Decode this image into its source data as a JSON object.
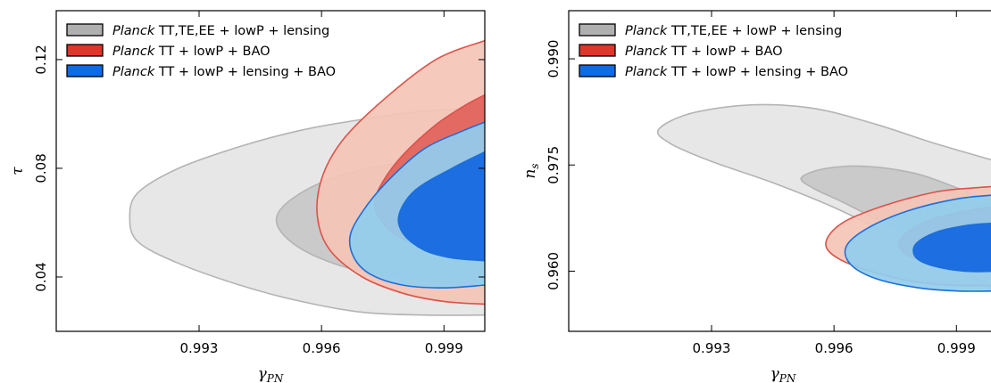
{
  "colors": {
    "gray_outer_fill": "#e3e3e3",
    "gray_inner_fill": "#c4c4c4",
    "gray_line": "#b4b4b4",
    "red_outer_fill": "#f5c4b7",
    "red_inner_fill": "#e1625a",
    "red_line": "#dc5348",
    "blue_outer_fill": "#90cdee",
    "blue_inner_fill": "#1266e0",
    "blue_line": "#1c6fd9",
    "legend_gray": "#b0b0b0",
    "legend_red": "#e0352b",
    "legend_blue": "#0e6be8"
  },
  "legend_items": [
    {
      "italic": "Planck",
      "rest": " TT,TE,EE + lowP + lensing",
      "color_key": "legend_gray"
    },
    {
      "italic": "Planck",
      "rest": " TT + lowP + BAO",
      "color_key": "legend_red"
    },
    {
      "italic": "Planck",
      "rest": " TT + lowP + lensing + BAO",
      "color_key": "legend_blue"
    }
  ],
  "chart_data": [
    {
      "type": "contour",
      "xlabel": "γ",
      "xlabel_sub": "PN",
      "ylabel": "τ",
      "ylabel_sub": "",
      "xlim": [
        0.9895,
        1.0
      ],
      "ylim": [
        0.02,
        0.138
      ],
      "xticks": [
        0.993,
        0.996,
        0.999
      ],
      "xtick_labels": [
        "0.993",
        "0.996",
        "0.999"
      ],
      "yticks": [
        0.04,
        0.08,
        0.12
      ],
      "ytick_labels": [
        "0.04",
        "0.08",
        "0.12"
      ],
      "legend_position": "top-left",
      "contours": [
        {
          "series": 0,
          "level": "95%",
          "points": [
            [
              1.0,
              0.026
            ],
            [
              0.9985,
              0.026
            ],
            [
              0.997,
              0.027
            ],
            [
              0.9955,
              0.031
            ],
            [
              0.994,
              0.037
            ],
            [
              0.9925,
              0.045
            ],
            [
              0.9915,
              0.053
            ],
            [
              0.9913,
              0.062
            ],
            [
              0.9915,
              0.071
            ],
            [
              0.9925,
              0.08
            ],
            [
              0.994,
              0.088
            ],
            [
              0.9955,
              0.094
            ],
            [
              0.997,
              0.098
            ],
            [
              0.9985,
              0.101
            ],
            [
              1.0,
              0.102
            ]
          ]
        },
        {
          "series": 0,
          "level": "68%",
          "points": [
            [
              1.0,
              0.037
            ],
            [
              0.9985,
              0.039
            ],
            [
              0.997,
              0.042
            ],
            [
              0.9958,
              0.048
            ],
            [
              0.9951,
              0.055
            ],
            [
              0.9949,
              0.062
            ],
            [
              0.9953,
              0.069
            ],
            [
              0.9962,
              0.076
            ],
            [
              0.9975,
              0.081
            ],
            [
              0.999,
              0.084
            ],
            [
              1.0,
              0.085
            ]
          ]
        },
        {
          "series": 1,
          "level": "95%",
          "points": [
            [
              1.0,
              0.03
            ],
            [
              0.999,
              0.031
            ],
            [
              0.998,
              0.034
            ],
            [
              0.997,
              0.04
            ],
            [
              0.9962,
              0.05
            ],
            [
              0.9959,
              0.062
            ],
            [
              0.996,
              0.076
            ],
            [
              0.9965,
              0.09
            ],
            [
              0.9975,
              0.105
            ],
            [
              0.9988,
              0.12
            ],
            [
              1.0,
              0.127
            ]
          ]
        },
        {
          "series": 1,
          "level": "68%",
          "points": [
            [
              1.0,
              0.049
            ],
            [
              0.999,
              0.05
            ],
            [
              0.998,
              0.054
            ],
            [
              0.9975,
              0.06
            ],
            [
              0.9973,
              0.067
            ],
            [
              0.9975,
              0.075
            ],
            [
              0.998,
              0.085
            ],
            [
              0.9988,
              0.096
            ],
            [
              0.9995,
              0.103
            ],
            [
              1.0,
              0.107
            ]
          ]
        },
        {
          "series": 2,
          "level": "95%",
          "points": [
            [
              1.0,
              0.037
            ],
            [
              0.999,
              0.036
            ],
            [
              0.998,
              0.037
            ],
            [
              0.9972,
              0.041
            ],
            [
              0.9968,
              0.047
            ],
            [
              0.9967,
              0.055
            ],
            [
              0.997,
              0.064
            ],
            [
              0.9976,
              0.075
            ],
            [
              0.9985,
              0.087
            ],
            [
              0.9995,
              0.094
            ],
            [
              1.0,
              0.097
            ]
          ]
        },
        {
          "series": 2,
          "level": "68%",
          "points": [
            [
              1.0,
              0.046
            ],
            [
              0.9992,
              0.047
            ],
            [
              0.9985,
              0.05
            ],
            [
              0.998,
              0.056
            ],
            [
              0.9979,
              0.063
            ],
            [
              0.9983,
              0.072
            ],
            [
              0.9992,
              0.08
            ],
            [
              1.0,
              0.086
            ]
          ]
        }
      ]
    },
    {
      "type": "contour",
      "xlabel": "γ",
      "xlabel_sub": "PN",
      "ylabel": "n",
      "ylabel_sub": "s",
      "xlim": [
        0.9895,
        1.0
      ],
      "ylim": [
        0.9515,
        0.9968
      ],
      "xticks": [
        0.993,
        0.996,
        0.999
      ],
      "xtick_labels": [
        "0.993",
        "0.996",
        "0.999"
      ],
      "yticks": [
        0.96,
        0.975,
        0.99
      ],
      "ytick_labels": [
        "0.960",
        "0.975",
        "0.990"
      ],
      "legend_position": "top-left",
      "contours": [
        {
          "series": 0,
          "level": "95%",
          "points": [
            [
              1.0,
              0.957
            ],
            [
              0.999,
              0.9605
            ],
            [
              0.9975,
              0.9648
            ],
            [
              0.996,
              0.969
            ],
            [
              0.9945,
              0.9725
            ],
            [
              0.993,
              0.9755
            ],
            [
              0.992,
              0.978
            ],
            [
              0.9917,
              0.98
            ],
            [
              0.9925,
              0.9823
            ],
            [
              0.994,
              0.9835
            ],
            [
              0.9955,
              0.983
            ],
            [
              0.997,
              0.9808
            ],
            [
              0.9985,
              0.978
            ],
            [
              1.0,
              0.9755
            ]
          ]
        },
        {
          "series": 0,
          "level": "68%",
          "points": [
            [
              1.0,
              0.9608
            ],
            [
              0.999,
              0.9625
            ],
            [
              0.998,
              0.965
            ],
            [
              0.997,
              0.9675
            ],
            [
              0.9962,
              0.9698
            ],
            [
              0.9955,
              0.9717
            ],
            [
              0.9952,
              0.9732
            ],
            [
              0.9958,
              0.9745
            ],
            [
              0.9968,
              0.9748
            ],
            [
              0.998,
              0.9738
            ],
            [
              0.999,
              0.9718
            ],
            [
              1.0,
              0.9695
            ]
          ]
        },
        {
          "series": 1,
          "level": "95%",
          "points": [
            [
              1.0,
              0.958
            ],
            [
              0.999,
              0.958
            ],
            [
              0.998,
              0.9585
            ],
            [
              0.997,
              0.9598
            ],
            [
              0.9961,
              0.9618
            ],
            [
              0.9958,
              0.964
            ],
            [
              0.9962,
              0.9668
            ],
            [
              0.9972,
              0.9692
            ],
            [
              0.9985,
              0.9712
            ],
            [
              0.9995,
              0.9718
            ],
            [
              1.0,
              0.972
            ]
          ]
        },
        {
          "series": 1,
          "level": "68%",
          "points": [
            [
              1.0,
              0.9605
            ],
            [
              0.999,
              0.9608
            ],
            [
              0.998,
              0.9618
            ],
            [
              0.9976,
              0.9635
            ],
            [
              0.9978,
              0.9655
            ],
            [
              0.9985,
              0.9675
            ],
            [
              0.9995,
              0.9688
            ],
            [
              1.0,
              0.969
            ]
          ]
        },
        {
          "series": 2,
          "level": "95%",
          "points": [
            [
              1.0,
              0.9572
            ],
            [
              0.999,
              0.9572
            ],
            [
              0.998,
              0.9577
            ],
            [
              0.997,
              0.959
            ],
            [
              0.9964,
              0.961
            ],
            [
              0.9963,
              0.9635
            ],
            [
              0.9968,
              0.966
            ],
            [
              0.9978,
              0.9685
            ],
            [
              0.999,
              0.9702
            ],
            [
              1.0,
              0.9708
            ]
          ]
        },
        {
          "series": 2,
          "level": "68%",
          "points": [
            [
              1.0,
              0.96
            ],
            [
              0.9992,
              0.96
            ],
            [
              0.9984,
              0.9608
            ],
            [
              0.998,
              0.962
            ],
            [
              0.998,
              0.9638
            ],
            [
              0.9985,
              0.9655
            ],
            [
              0.9993,
              0.9665
            ],
            [
              1.0,
              0.9668
            ]
          ]
        }
      ]
    }
  ]
}
